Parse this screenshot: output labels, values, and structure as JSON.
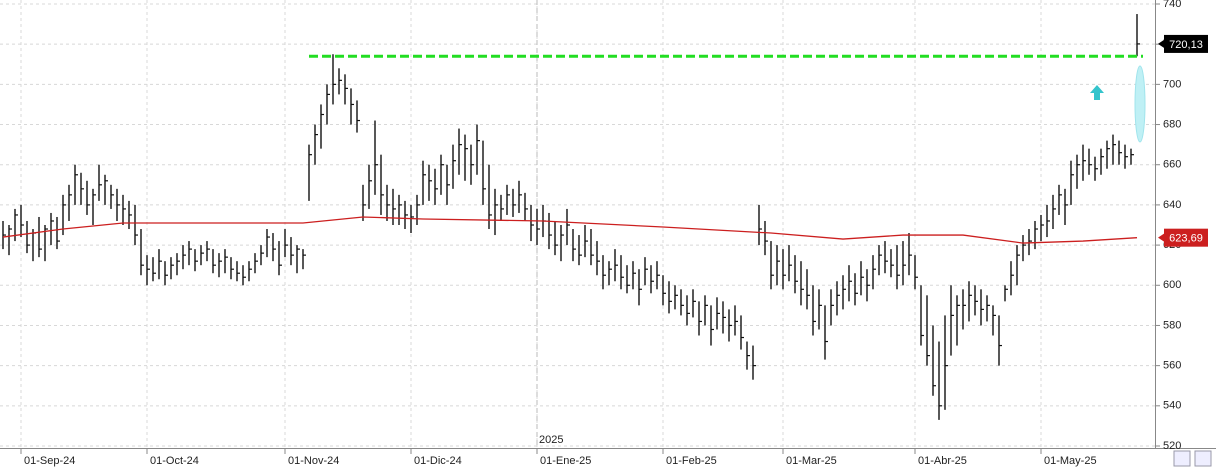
{
  "chart_data": {
    "type": "ohlc",
    "bar_color": "#111111",
    "ylim": [
      520,
      740
    ],
    "yticks": [
      520,
      540,
      560,
      580,
      600,
      620,
      640,
      660,
      680,
      700,
      720,
      740
    ],
    "xlim": [
      0,
      189
    ],
    "xticks": [
      {
        "value": 3,
        "label": "01-Sep-24"
      },
      {
        "value": 24,
        "label": "01-Oct-24"
      },
      {
        "value": 47,
        "label": "01-Nov-24"
      },
      {
        "value": 68,
        "label": "01-Dic-24"
      },
      {
        "value": 89,
        "label": "01-Ene-25"
      },
      {
        "value": 110,
        "label": "01-Feb-25"
      },
      {
        "value": 130,
        "label": "01-Mar-25"
      },
      {
        "value": 152,
        "label": "01-Abr-25"
      },
      {
        "value": 173,
        "label": "01-May-25"
      }
    ],
    "grid": true,
    "year_label": {
      "text": "2025",
      "x": 89
    },
    "bars": [
      [
        632,
        618,
        625
      ],
      [
        630,
        615,
        628
      ],
      [
        638,
        622,
        635
      ],
      [
        640,
        624,
        630
      ],
      [
        632,
        616,
        620
      ],
      [
        628,
        612,
        626
      ],
      [
        634,
        614,
        618
      ],
      [
        630,
        612,
        628
      ],
      [
        636,
        620,
        632
      ],
      [
        634,
        618,
        622
      ],
      [
        645,
        625,
        640
      ],
      [
        650,
        632,
        645
      ],
      [
        660,
        640,
        655
      ],
      [
        656,
        640,
        648
      ],
      [
        652,
        635,
        640
      ],
      [
        648,
        630,
        645
      ],
      [
        660,
        642,
        650
      ],
      [
        655,
        640,
        652
      ],
      [
        650,
        638,
        645
      ],
      [
        648,
        632,
        640
      ],
      [
        645,
        630,
        638
      ],
      [
        642,
        628,
        635
      ],
      [
        640,
        620,
        625
      ],
      [
        628,
        605,
        610
      ],
      [
        615,
        600,
        608
      ],
      [
        614,
        602,
        606
      ],
      [
        618,
        603,
        612
      ],
      [
        612,
        600,
        605
      ],
      [
        614,
        603,
        610
      ],
      [
        616,
        605,
        612
      ],
      [
        620,
        608,
        615
      ],
      [
        622,
        610,
        618
      ],
      [
        618,
        607,
        612
      ],
      [
        620,
        610,
        616
      ],
      [
        622,
        612,
        618
      ],
      [
        618,
        606,
        610
      ],
      [
        616,
        604,
        612
      ],
      [
        618,
        606,
        614
      ],
      [
        614,
        603,
        608
      ],
      [
        612,
        602,
        606
      ],
      [
        610,
        600,
        604
      ],
      [
        612,
        602,
        608
      ],
      [
        616,
        606,
        612
      ],
      [
        620,
        610,
        616
      ],
      [
        628,
        614,
        624
      ],
      [
        626,
        612,
        618
      ],
      [
        622,
        605,
        610
      ],
      [
        628,
        614,
        620
      ],
      [
        624,
        610,
        615
      ],
      [
        620,
        606,
        618
      ],
      [
        618,
        608,
        615
      ],
      [
        670,
        642,
        665
      ],
      [
        680,
        660,
        675
      ],
      [
        690,
        668,
        685
      ],
      [
        700,
        680,
        695
      ],
      [
        715,
        690,
        700
      ],
      [
        708,
        695,
        702
      ],
      [
        705,
        690,
        698
      ],
      [
        698,
        680,
        690
      ],
      [
        692,
        676,
        682
      ],
      [
        650,
        632,
        640
      ],
      [
        660,
        638,
        652
      ],
      [
        682,
        645,
        660
      ],
      [
        665,
        635,
        645
      ],
      [
        650,
        632,
        640
      ],
      [
        648,
        630,
        638
      ],
      [
        645,
        630,
        640
      ],
      [
        642,
        628,
        635
      ],
      [
        640,
        626,
        634
      ],
      [
        645,
        630,
        640
      ],
      [
        662,
        640,
        655
      ],
      [
        660,
        642,
        652
      ],
      [
        658,
        640,
        648
      ],
      [
        665,
        645,
        660
      ],
      [
        660,
        640,
        650
      ],
      [
        670,
        648,
        662
      ],
      [
        678,
        655,
        670
      ],
      [
        675,
        652,
        668
      ],
      [
        670,
        650,
        660
      ],
      [
        680,
        655,
        672
      ],
      [
        672,
        640,
        648
      ],
      [
        660,
        628,
        635
      ],
      [
        648,
        625,
        640
      ],
      [
        645,
        632,
        638
      ],
      [
        650,
        635,
        645
      ],
      [
        648,
        634,
        640
      ],
      [
        652,
        636,
        645
      ],
      [
        646,
        632,
        638
      ],
      [
        640,
        622,
        630
      ],
      [
        638,
        620,
        628
      ],
      [
        640,
        624,
        632
      ],
      [
        636,
        618,
        625
      ],
      [
        632,
        615,
        620
      ],
      [
        630,
        612,
        625
      ],
      [
        638,
        620,
        630
      ],
      [
        628,
        612,
        618
      ],
      [
        625,
        610,
        615
      ],
      [
        630,
        614,
        622
      ],
      [
        628,
        610,
        615
      ],
      [
        622,
        605,
        612
      ],
      [
        615,
        598,
        605
      ],
      [
        612,
        600,
        608
      ],
      [
        618,
        602,
        610
      ],
      [
        615,
        598,
        604
      ],
      [
        610,
        596,
        600
      ],
      [
        612,
        598,
        606
      ],
      [
        608,
        590,
        598
      ],
      [
        614,
        600,
        608
      ],
      [
        610,
        596,
        602
      ],
      [
        612,
        598,
        605
      ],
      [
        605,
        590,
        596
      ],
      [
        602,
        586,
        592
      ],
      [
        600,
        588,
        595
      ],
      [
        598,
        585,
        590
      ],
      [
        595,
        580,
        586
      ],
      [
        598,
        584,
        592
      ],
      [
        592,
        575,
        582
      ],
      [
        595,
        580,
        590
      ],
      [
        590,
        570,
        578
      ],
      [
        594,
        578,
        586
      ],
      [
        592,
        576,
        584
      ],
      [
        588,
        572,
        580
      ],
      [
        590,
        575,
        582
      ],
      [
        585,
        568,
        574
      ],
      [
        572,
        558,
        565
      ],
      [
        570,
        553,
        560
      ],
      [
        640,
        620,
        628
      ],
      [
        632,
        615,
        622
      ],
      [
        622,
        598,
        605
      ],
      [
        620,
        600,
        612
      ],
      [
        618,
        598,
        605
      ],
      [
        620,
        602,
        610
      ],
      [
        615,
        596,
        602
      ],
      [
        612,
        590,
        598
      ],
      [
        608,
        588,
        595
      ],
      [
        600,
        575,
        582
      ],
      [
        598,
        578,
        590
      ],
      [
        590,
        563,
        572
      ],
      [
        598,
        580,
        590
      ],
      [
        602,
        585,
        595
      ],
      [
        605,
        588,
        598
      ],
      [
        610,
        592,
        602
      ],
      [
        606,
        590,
        596
      ],
      [
        612,
        595,
        604
      ],
      [
        608,
        592,
        600
      ],
      [
        615,
        598,
        608
      ],
      [
        620,
        605,
        615
      ],
      [
        622,
        606,
        612
      ],
      [
        618,
        604,
        610
      ],
      [
        620,
        598,
        605
      ],
      [
        622,
        600,
        610
      ],
      [
        626,
        605,
        615
      ],
      [
        615,
        598,
        604
      ],
      [
        600,
        570,
        575
      ],
      [
        595,
        560,
        565
      ],
      [
        580,
        545,
        550
      ],
      [
        572,
        533,
        540
      ],
      [
        585,
        538,
        560
      ],
      [
        600,
        565,
        585
      ],
      [
        595,
        570,
        590
      ],
      [
        598,
        578,
        590
      ],
      [
        602,
        582,
        595
      ],
      [
        600,
        585,
        592
      ],
      [
        598,
        580,
        588
      ],
      [
        595,
        582,
        590
      ],
      [
        590,
        575,
        585
      ],
      [
        585,
        560,
        570
      ],
      [
        600,
        592,
        598
      ],
      [
        612,
        595,
        605
      ],
      [
        620,
        600,
        615
      ],
      [
        625,
        612,
        620
      ],
      [
        628,
        615,
        622
      ],
      [
        632,
        618,
        628
      ],
      [
        635,
        622,
        630
      ],
      [
        640,
        624,
        632
      ],
      [
        645,
        628,
        638
      ],
      [
        650,
        635,
        645
      ],
      [
        648,
        630,
        640
      ],
      [
        662,
        640,
        655
      ],
      [
        665,
        648,
        660
      ],
      [
        670,
        652,
        662
      ],
      [
        668,
        655,
        660
      ],
      [
        664,
        652,
        658
      ],
      [
        668,
        655,
        664
      ],
      [
        672,
        658,
        668
      ],
      [
        675,
        660,
        670
      ],
      [
        672,
        660,
        666
      ],
      [
        670,
        658,
        664
      ],
      [
        668,
        660,
        665
      ],
      [
        735,
        714,
        720.13
      ]
    ],
    "last_price": {
      "value": 720.13,
      "label": "720,13"
    },
    "moving_average": {
      "color": "#cc1f1f",
      "x": [
        0,
        10,
        20,
        30,
        50,
        60,
        70,
        90,
        110,
        128,
        140,
        150,
        160,
        170,
        180,
        189
      ],
      "values": [
        624,
        628,
        631,
        631,
        631,
        634,
        633,
        632,
        629,
        626,
        623,
        625,
        625,
        621,
        622,
        623.69
      ],
      "last_label": {
        "value": 623.69,
        "label": "623,69"
      }
    },
    "resistance": {
      "value": 714,
      "x": [
        51,
        189
      ],
      "color": "#22dd22"
    }
  }
}
